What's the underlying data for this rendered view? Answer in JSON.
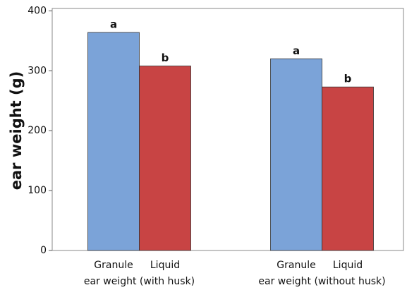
{
  "chart_data": {
    "type": "bar",
    "y_label": "ear weight (g)",
    "categories": [
      "ear weight (with husk)",
      "ear weight (without husk)"
    ],
    "series": [
      {
        "name": "Granule",
        "color": "#7ba3d8",
        "values": [
          364,
          320
        ],
        "significance": [
          "a",
          "a"
        ]
      },
      {
        "name": "Liquid",
        "color": "#c84444",
        "values": [
          308,
          273
        ],
        "significance": [
          "b",
          "b"
        ]
      }
    ],
    "ylim": [
      0,
      404
    ],
    "yticks": [
      0,
      100,
      200,
      300,
      400
    ],
    "grid": false
  }
}
